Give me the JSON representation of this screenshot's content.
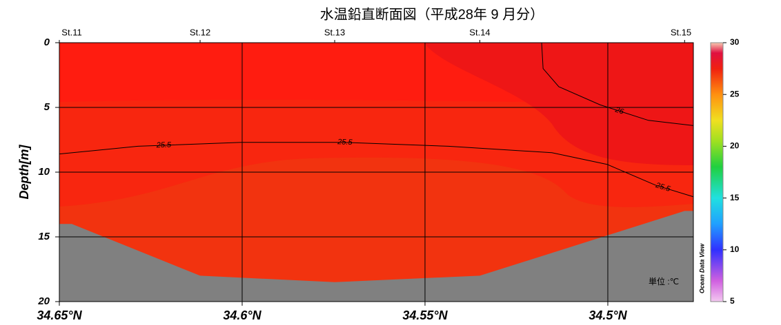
{
  "chart_data": {
    "type": "section",
    "title": "水温鉛直断面図（平成28年 9 月分）",
    "y_label": "Depth[m]",
    "ylim": [
      0,
      20
    ],
    "y_inverted": true,
    "yticks": [
      0,
      5,
      10,
      15,
      20
    ],
    "xlim": [
      34.65,
      34.4766
    ],
    "xticks": [
      {
        "value": 34.65,
        "label": "34.65°N"
      },
      {
        "value": 34.6,
        "label": "34.6°N"
      },
      {
        "value": 34.55,
        "label": "34.55°N"
      },
      {
        "value": 34.5,
        "label": "34.5°N"
      }
    ],
    "grid": true,
    "stations": {
      "names": [
        "St.11",
        "St.12",
        "St.13",
        "St.14",
        "St.15"
      ],
      "x": [
        34.65,
        34.6115,
        34.5747,
        34.535,
        34.479
      ]
    },
    "bottom": {
      "x": [
        34.65,
        34.6466,
        34.6115,
        34.5747,
        34.535,
        34.479,
        34.4766
      ],
      "depth": [
        14,
        14,
        18,
        18.5,
        18,
        13,
        13
      ],
      "color": "#808080"
    },
    "contours": [
      {
        "level": 25.5,
        "x": [
          34.65,
          34.6285,
          34.6002,
          34.5719,
          34.5436,
          34.5153,
          34.5002,
          34.487,
          34.4766
        ],
        "depth": [
          8.6,
          8.0,
          7.7,
          7.7,
          8.0,
          8.5,
          9.4,
          11.0,
          11.9
        ]
      },
      {
        "level": 26,
        "x": [
          34.5181,
          34.5177,
          34.5134,
          34.5021,
          34.4889,
          34.4766
        ],
        "depth": [
          0,
          2.0,
          3.4,
          4.8,
          6.0,
          6.4
        ]
      }
    ],
    "colorbar": {
      "lim": [
        5,
        30
      ],
      "ticks": [
        5,
        10,
        15,
        20,
        25,
        30
      ]
    },
    "unit_note": "単位 :℃",
    "credit": "Ocean Data View"
  }
}
